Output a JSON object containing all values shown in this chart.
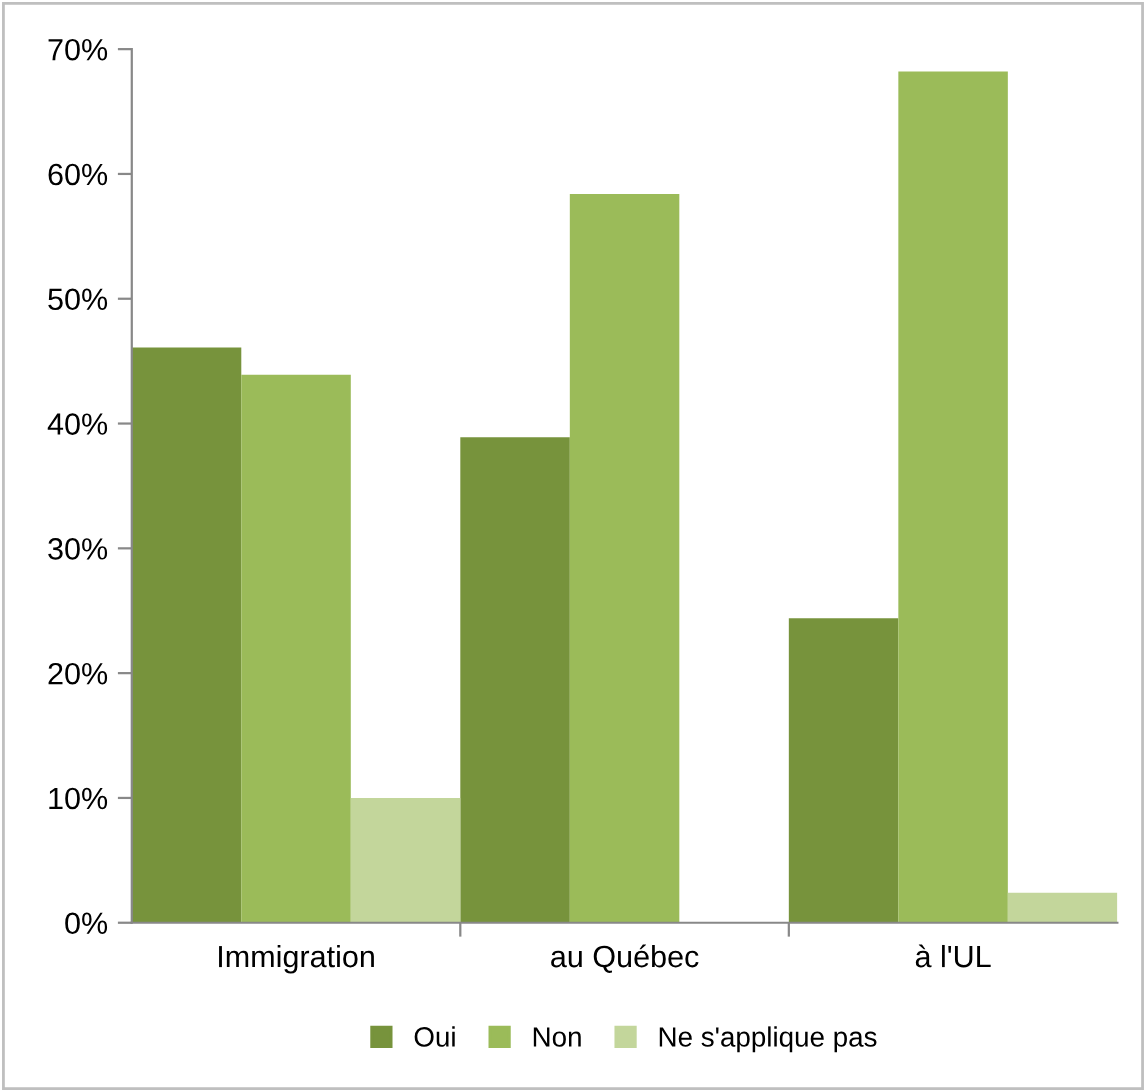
{
  "chart_data": {
    "type": "bar",
    "categories": [
      "Immigration",
      "au Québec",
      "à l'UL"
    ],
    "series": [
      {
        "name": "Oui",
        "color": "#77933c",
        "values": [
          46.1,
          38.9,
          24.4
        ]
      },
      {
        "name": "Non",
        "color": "#9bbb59",
        "values": [
          43.9,
          58.4,
          68.2
        ]
      },
      {
        "name": "Ne s'applique pas",
        "color": "#c3d69b",
        "values": [
          10.0,
          null,
          2.4
        ]
      }
    ],
    "ylim": [
      0,
      70
    ],
    "yticks": [
      {
        "value": 0,
        "label": "0%"
      },
      {
        "value": 10,
        "label": "10%"
      },
      {
        "value": 20,
        "label": "20%"
      },
      {
        "value": 30,
        "label": "30%"
      },
      {
        "value": 40,
        "label": "40%"
      },
      {
        "value": 50,
        "label": "50%"
      },
      {
        "value": 60,
        "label": "60%"
      },
      {
        "value": 70,
        "label": "70%"
      }
    ],
    "grid": false,
    "legend": "bottom"
  }
}
